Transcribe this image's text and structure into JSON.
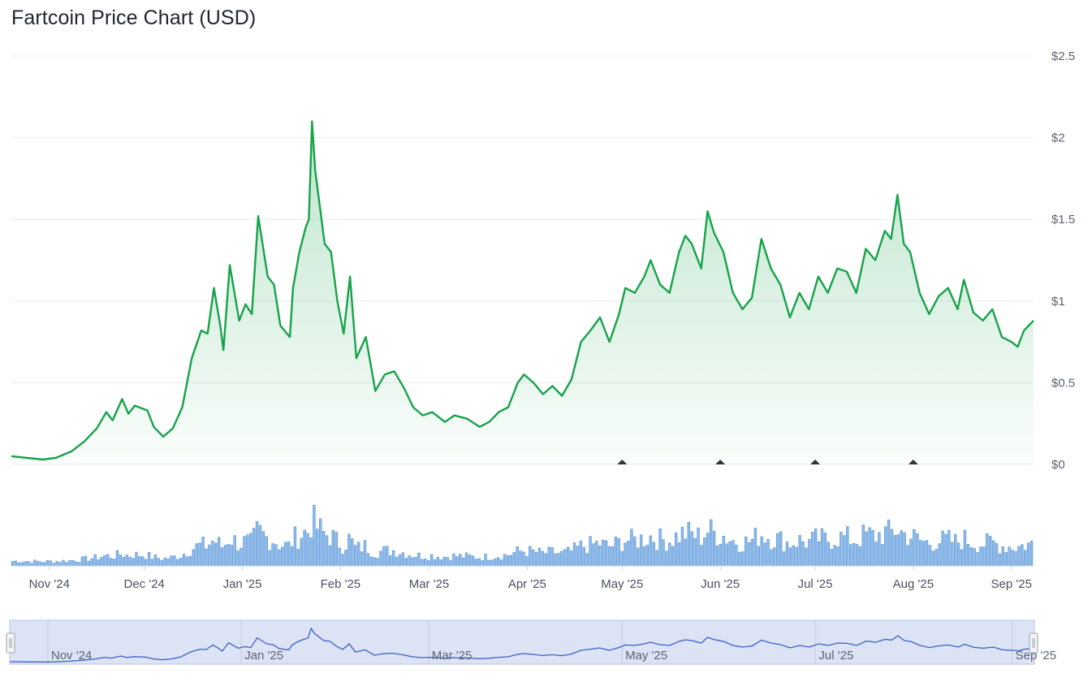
{
  "title": "Fartcoin Price Chart (USD)",
  "colors": {
    "price_line": "#16a34a",
    "price_fill_top": "#16a34a",
    "volume_bar": "#8db9e8",
    "volume_bar_edge": "#4f8fd6",
    "navigator_fill": "#dbe3f5",
    "navigator_line": "#3d5fc4",
    "grid": "#e9ecef",
    "markers": "#333333"
  },
  "chart_data": [
    {
      "type": "area",
      "title": "Fartcoin Price Chart (USD)",
      "x_start": "2024-10-20",
      "x_end": "2025-09-08",
      "ylim": [
        0,
        2.5
      ],
      "yticks": [
        {
          "value": 0,
          "label": "$0"
        },
        {
          "value": 0.5,
          "label": "$0.5"
        },
        {
          "value": 1,
          "label": "$1"
        },
        {
          "value": 1.5,
          "label": "$1.5"
        },
        {
          "value": 2,
          "label": "$2"
        },
        {
          "value": 2.5,
          "label": "$2.5"
        }
      ],
      "xticks": [
        {
          "date": "2024-11-01",
          "label": "Nov '24"
        },
        {
          "date": "2024-12-01",
          "label": "Dec '24"
        },
        {
          "date": "2025-01-01",
          "label": "Jan '25"
        },
        {
          "date": "2025-02-01",
          "label": "Feb '25"
        },
        {
          "date": "2025-03-01",
          "label": "Mar '25"
        },
        {
          "date": "2025-04-01",
          "label": "Apr '25"
        },
        {
          "date": "2025-05-01",
          "label": "May '25"
        },
        {
          "date": "2025-06-01",
          "label": "Jun '25"
        },
        {
          "date": "2025-07-01",
          "label": "Jul '25"
        },
        {
          "date": "2025-08-01",
          "label": "Aug '25"
        },
        {
          "date": "2025-09-01",
          "label": "Sep '25"
        }
      ],
      "grid": true,
      "series": [
        {
          "values": [
            [
              "2024-10-20",
              0.05
            ],
            [
              "2024-10-25",
              0.04
            ],
            [
              "2024-10-30",
              0.03
            ],
            [
              "2024-11-03",
              0.04
            ],
            [
              "2024-11-08",
              0.08
            ],
            [
              "2024-11-12",
              0.14
            ],
            [
              "2024-11-16",
              0.22
            ],
            [
              "2024-11-19",
              0.32
            ],
            [
              "2024-11-21",
              0.27
            ],
            [
              "2024-11-24",
              0.4
            ],
            [
              "2024-11-26",
              0.31
            ],
            [
              "2024-11-28",
              0.36
            ],
            [
              "2024-12-02",
              0.33
            ],
            [
              "2024-12-04",
              0.23
            ],
            [
              "2024-12-07",
              0.17
            ],
            [
              "2024-12-10",
              0.22
            ],
            [
              "2024-12-13",
              0.35
            ],
            [
              "2024-12-16",
              0.65
            ],
            [
              "2024-12-19",
              0.82
            ],
            [
              "2024-12-21",
              0.8
            ],
            [
              "2024-12-23",
              1.08
            ],
            [
              "2024-12-25",
              0.85
            ],
            [
              "2024-12-26",
              0.7
            ],
            [
              "2024-12-28",
              1.22
            ],
            [
              "2024-12-31",
              0.88
            ],
            [
              "2025-01-02",
              0.98
            ],
            [
              "2025-01-04",
              0.92
            ],
            [
              "2025-01-06",
              1.52
            ],
            [
              "2025-01-09",
              1.15
            ],
            [
              "2025-01-11",
              1.1
            ],
            [
              "2025-01-13",
              0.85
            ],
            [
              "2025-01-16",
              0.78
            ],
            [
              "2025-01-17",
              1.08
            ],
            [
              "2025-01-19",
              1.3
            ],
            [
              "2025-01-21",
              1.45
            ],
            [
              "2025-01-22",
              1.5
            ],
            [
              "2025-01-23",
              2.1
            ],
            [
              "2025-01-24",
              1.8
            ],
            [
              "2025-01-27",
              1.35
            ],
            [
              "2025-01-29",
              1.3
            ],
            [
              "2025-01-31",
              1.0
            ],
            [
              "2025-02-02",
              0.8
            ],
            [
              "2025-02-04",
              1.15
            ],
            [
              "2025-02-06",
              0.65
            ],
            [
              "2025-02-09",
              0.78
            ],
            [
              "2025-02-12",
              0.45
            ],
            [
              "2025-02-15",
              0.55
            ],
            [
              "2025-02-18",
              0.57
            ],
            [
              "2025-02-21",
              0.47
            ],
            [
              "2025-02-24",
              0.35
            ],
            [
              "2025-02-27",
              0.3
            ],
            [
              "2025-03-02",
              0.32
            ],
            [
              "2025-03-06",
              0.26
            ],
            [
              "2025-03-09",
              0.3
            ],
            [
              "2025-03-13",
              0.28
            ],
            [
              "2025-03-17",
              0.23
            ],
            [
              "2025-03-20",
              0.26
            ],
            [
              "2025-03-23",
              0.32
            ],
            [
              "2025-03-26",
              0.35
            ],
            [
              "2025-03-29",
              0.5
            ],
            [
              "2025-03-31",
              0.55
            ],
            [
              "2025-04-03",
              0.5
            ],
            [
              "2025-04-06",
              0.43
            ],
            [
              "2025-04-09",
              0.48
            ],
            [
              "2025-04-12",
              0.42
            ],
            [
              "2025-04-15",
              0.52
            ],
            [
              "2025-04-18",
              0.75
            ],
            [
              "2025-04-21",
              0.82
            ],
            [
              "2025-04-24",
              0.9
            ],
            [
              "2025-04-27",
              0.75
            ],
            [
              "2025-04-30",
              0.92
            ],
            [
              "2025-05-02",
              1.08
            ],
            [
              "2025-05-05",
              1.05
            ],
            [
              "2025-05-08",
              1.15
            ],
            [
              "2025-05-10",
              1.25
            ],
            [
              "2025-05-13",
              1.1
            ],
            [
              "2025-05-16",
              1.05
            ],
            [
              "2025-05-19",
              1.3
            ],
            [
              "2025-05-21",
              1.4
            ],
            [
              "2025-05-23",
              1.35
            ],
            [
              "2025-05-26",
              1.2
            ],
            [
              "2025-05-28",
              1.55
            ],
            [
              "2025-05-30",
              1.42
            ],
            [
              "2025-06-02",
              1.3
            ],
            [
              "2025-06-05",
              1.05
            ],
            [
              "2025-06-08",
              0.95
            ],
            [
              "2025-06-11",
              1.02
            ],
            [
              "2025-06-14",
              1.38
            ],
            [
              "2025-06-17",
              1.2
            ],
            [
              "2025-06-20",
              1.1
            ],
            [
              "2025-06-23",
              0.9
            ],
            [
              "2025-06-26",
              1.05
            ],
            [
              "2025-06-29",
              0.95
            ],
            [
              "2025-07-02",
              1.15
            ],
            [
              "2025-07-05",
              1.05
            ],
            [
              "2025-07-08",
              1.2
            ],
            [
              "2025-07-11",
              1.18
            ],
            [
              "2025-07-14",
              1.05
            ],
            [
              "2025-07-17",
              1.32
            ],
            [
              "2025-07-20",
              1.25
            ],
            [
              "2025-07-23",
              1.43
            ],
            [
              "2025-07-25",
              1.38
            ],
            [
              "2025-07-27",
              1.65
            ],
            [
              "2025-07-29",
              1.35
            ],
            [
              "2025-07-31",
              1.3
            ],
            [
              "2025-08-03",
              1.05
            ],
            [
              "2025-08-06",
              0.92
            ],
            [
              "2025-08-09",
              1.03
            ],
            [
              "2025-08-12",
              1.08
            ],
            [
              "2025-08-15",
              0.95
            ],
            [
              "2025-08-17",
              1.13
            ],
            [
              "2025-08-20",
              0.93
            ],
            [
              "2025-08-23",
              0.88
            ],
            [
              "2025-08-26",
              0.95
            ],
            [
              "2025-08-29",
              0.78
            ],
            [
              "2025-09-01",
              0.75
            ],
            [
              "2025-09-03",
              0.72
            ],
            [
              "2025-09-05",
              0.82
            ],
            [
              "2025-09-08",
              0.88
            ]
          ]
        }
      ]
    },
    {
      "type": "bar",
      "description_of": "volume",
      "note": "",
      "ylim": [
        0,
        1
      ],
      "values": []
    },
    {
      "type": "line",
      "description_of": "navigator",
      "xticks": [
        {
          "date": "2024-11-01",
          "label": "Nov '24"
        },
        {
          "date": "2025-01-01",
          "label": "Jan '25"
        },
        {
          "date": "2025-03-01",
          "label": "Mar '25"
        },
        {
          "date": "2025-05-01",
          "label": "May '25"
        },
        {
          "date": "2025-07-01",
          "label": "Jul '25"
        },
        {
          "date": "2025-09-01",
          "label": "Sep '25"
        }
      ]
    }
  ]
}
